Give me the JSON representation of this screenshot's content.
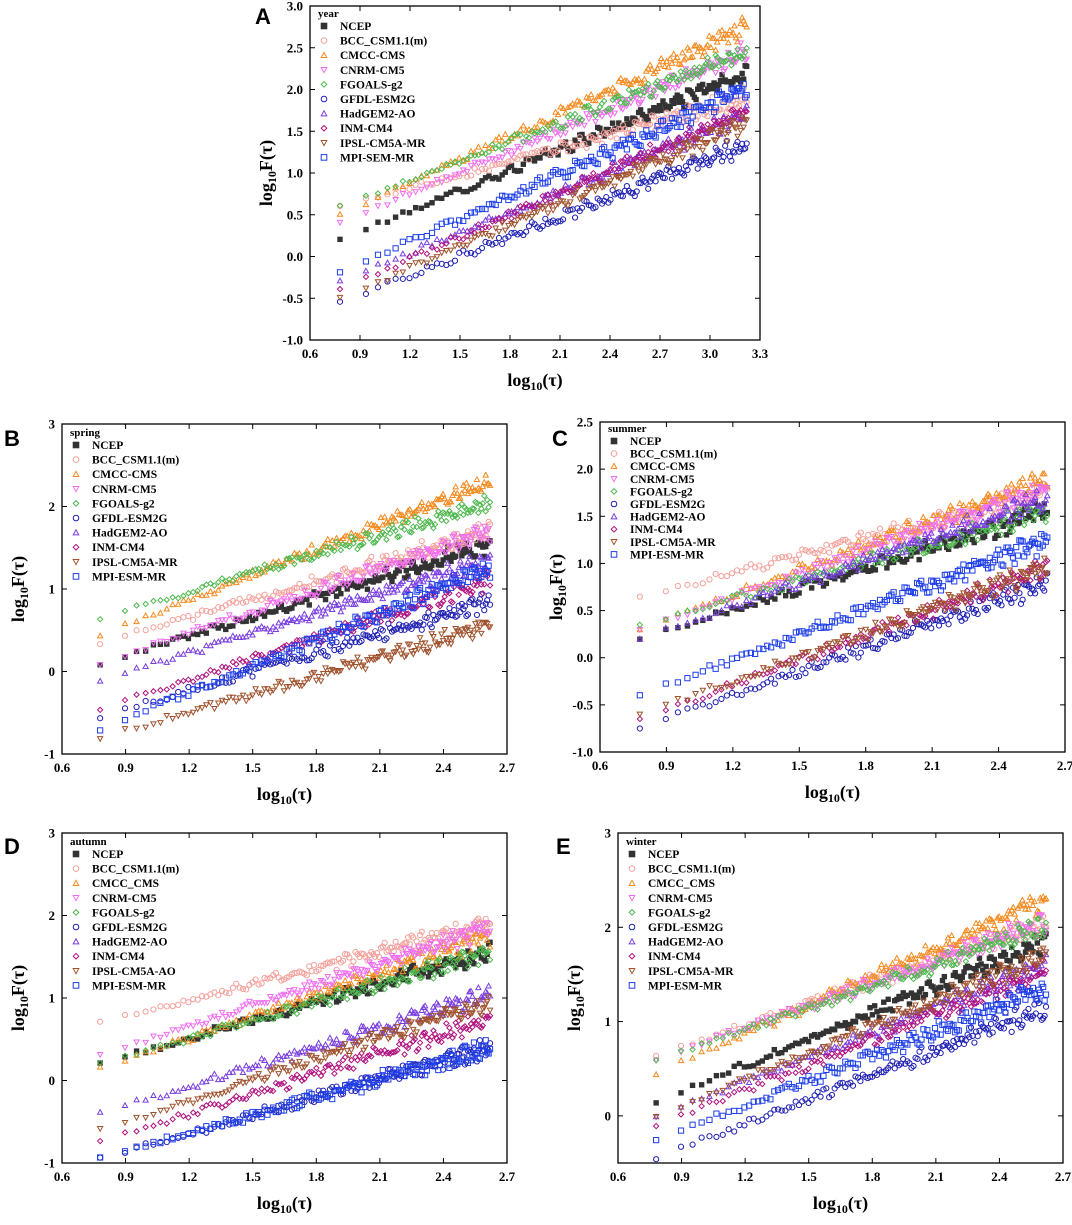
{
  "figure": {
    "x_axis_label": "log10(τ)",
    "y_axis_label": "log10F(τ)"
  },
  "colors": {
    "NCEP": "#333333",
    "BCC": "#f4a09a",
    "CMCC": "#f58a1f",
    "CNRM": "#f06ef0",
    "FGOALS": "#4fb84f",
    "GFDL": "#1f1fb3",
    "HadGEM": "#7a3fe0",
    "INM": "#b0127f",
    "IPSL": "#a0522d",
    "MPI": "#1f3fe8"
  },
  "chart_data": [
    {
      "panel": "A",
      "type": "scatter",
      "legend_title": "year",
      "xlabel": "log10(τ)",
      "ylabel": "log10F(τ)",
      "xlim": [
        0.6,
        3.3
      ],
      "ylim": [
        -1.0,
        3.0
      ],
      "xticks": [
        "0.6",
        "0.9",
        "1.2",
        "1.5",
        "1.8",
        "2.1",
        "2.4",
        "2.7",
        "3.0",
        "3.3"
      ],
      "yticks": [
        "-1.0",
        "-0.5",
        "0.0",
        "0.5",
        "1.0",
        "1.5",
        "2.0",
        "2.5",
        "3.0"
      ],
      "x_range": [
        0.78,
        3.22
      ],
      "series": [
        {
          "name": "NCEP",
          "key": "NCEP",
          "marker": "square",
          "y_start": 0.2,
          "y_end": 2.2
        },
        {
          "name": "BCC_CSM1.1(m)",
          "key": "BCC",
          "marker": "circle",
          "y_start": 0.6,
          "y_end": 1.9
        },
        {
          "name": "CMCC-CMS",
          "key": "CMCC",
          "marker": "triangle-up",
          "y_start": 0.5,
          "y_end": 2.75
        },
        {
          "name": "CNRM-CM5",
          "key": "CNRM",
          "marker": "triangle-down",
          "y_start": 0.4,
          "y_end": 2.45
        },
        {
          "name": "FGOALS-g2",
          "key": "FGOALS",
          "marker": "diamond",
          "y_start": 0.6,
          "y_end": 2.45
        },
        {
          "name": "GFDL-ESM2G",
          "key": "GFDL",
          "marker": "circle",
          "y_start": -0.55,
          "y_end": 1.35
        },
        {
          "name": "HadGEM2-AO",
          "key": "HadGEM",
          "marker": "triangle-up",
          "y_start": -0.3,
          "y_end": 1.7
        },
        {
          "name": "INM-CM4",
          "key": "INM",
          "marker": "diamond",
          "y_start": -0.4,
          "y_end": 1.75
        },
        {
          "name": "IPSL-CM5A-MR",
          "key": "IPSL",
          "marker": "triangle-down",
          "y_start": -0.5,
          "y_end": 1.6
        },
        {
          "name": "MPI-SEM-MR",
          "key": "MPI",
          "marker": "square",
          "y_start": -0.2,
          "y_end": 2.0
        }
      ]
    },
    {
      "panel": "B",
      "type": "scatter",
      "legend_title": "spring",
      "xlabel": "log10(τ)",
      "ylabel": "log10F(τ)",
      "xlim": [
        0.6,
        2.7
      ],
      "ylim": [
        -1,
        3
      ],
      "xticks": [
        "0.6",
        "0.9",
        "1.2",
        "1.5",
        "1.8",
        "2.1",
        "2.4",
        "2.7"
      ],
      "yticks": [
        "-1",
        "0",
        "1",
        "2",
        "3"
      ],
      "x_range": [
        0.78,
        2.62
      ],
      "series": [
        {
          "name": "NCEP",
          "key": "NCEP",
          "marker": "square",
          "y_start": 0.1,
          "y_end": 1.55
        },
        {
          "name": "BCC_CSM1.1(m)",
          "key": "BCC",
          "marker": "circle",
          "y_start": 0.35,
          "y_end": 1.7
        },
        {
          "name": "CMCC-CMS",
          "key": "CMCC",
          "marker": "triangle-up",
          "y_start": 0.45,
          "y_end": 2.3
        },
        {
          "name": "CNRM-CM5",
          "key": "CNRM",
          "marker": "triangle-down",
          "y_start": 0.1,
          "y_end": 1.7
        },
        {
          "name": "FGOALS-g2",
          "key": "FGOALS",
          "marker": "diamond",
          "y_start": 0.65,
          "y_end": 2.05
        },
        {
          "name": "GFDL-ESM2G",
          "key": "GFDL",
          "marker": "circle",
          "y_start": -0.55,
          "y_end": 0.85
        },
        {
          "name": "HadGEM2-AO",
          "key": "HadGEM",
          "marker": "triangle-up",
          "y_start": -0.1,
          "y_end": 1.35
        },
        {
          "name": "INM-CM4",
          "key": "INM",
          "marker": "diamond",
          "y_start": -0.45,
          "y_end": 1.1
        },
        {
          "name": "IPSL-CM5A-MR",
          "key": "IPSL",
          "marker": "triangle-down",
          "y_start": -0.8,
          "y_end": 0.55
        },
        {
          "name": "MPI-ESM-MR",
          "key": "MPI",
          "marker": "square",
          "y_start": -0.7,
          "y_end": 1.25
        }
      ]
    },
    {
      "panel": "C",
      "type": "scatter",
      "legend_title": "summer",
      "xlabel": "log10(τ)",
      "ylabel": "log10F(τ)",
      "xlim": [
        0.6,
        2.7
      ],
      "ylim": [
        -1.0,
        2.5
      ],
      "xticks": [
        "0.6",
        "0.9",
        "1.2",
        "1.5",
        "1.8",
        "2.1",
        "2.4",
        "2.7"
      ],
      "yticks": [
        "-1.0",
        "-0.5",
        "0.0",
        "0.5",
        "1.0",
        "1.5",
        "2.0",
        "2.5"
      ],
      "x_range": [
        0.78,
        2.62
      ],
      "series": [
        {
          "name": "NCEP",
          "key": "NCEP",
          "marker": "square",
          "y_start": 0.2,
          "y_end": 1.55
        },
        {
          "name": "BCC_CSM1.1(m)",
          "key": "BCC",
          "marker": "circle",
          "y_start": 0.65,
          "y_end": 1.75
        },
        {
          "name": "CMCC-CMS",
          "key": "CMCC",
          "marker": "triangle-up",
          "y_start": 0.3,
          "y_end": 1.9
        },
        {
          "name": "CNRM-CM5",
          "key": "CNRM",
          "marker": "triangle-down",
          "y_start": 0.3,
          "y_end": 1.8
        },
        {
          "name": "FGOALS-g2",
          "key": "FGOALS",
          "marker": "diamond",
          "y_start": 0.35,
          "y_end": 1.55
        },
        {
          "name": "GFDL-ESM2G",
          "key": "GFDL",
          "marker": "circle",
          "y_start": -0.75,
          "y_end": 0.8
        },
        {
          "name": "HadGEM2-AO",
          "key": "HadGEM",
          "marker": "triangle-up",
          "y_start": 0.2,
          "y_end": 1.7
        },
        {
          "name": "INM-CM4",
          "key": "INM",
          "marker": "diamond",
          "y_start": -0.65,
          "y_end": 0.95
        },
        {
          "name": "IPSL-CM5A-MR",
          "key": "IPSL",
          "marker": "triangle-down",
          "y_start": -0.6,
          "y_end": 0.95
        },
        {
          "name": "MPI-ESM-MR",
          "key": "MPI",
          "marker": "square",
          "y_start": -0.4,
          "y_end": 1.25
        }
      ]
    },
    {
      "panel": "D",
      "type": "scatter",
      "legend_title": "autumn",
      "xlabel": "log10(τ)",
      "ylabel": "log10F(τ)",
      "xlim": [
        0.6,
        2.7
      ],
      "ylim": [
        -1,
        3
      ],
      "xticks": [
        "0.6",
        "0.9",
        "1.2",
        "1.5",
        "1.8",
        "2.1",
        "2.4",
        "2.7"
      ],
      "yticks": [
        "-1",
        "0",
        "1",
        "2",
        "3"
      ],
      "x_range": [
        0.78,
        2.62
      ],
      "series": [
        {
          "name": "NCEP",
          "key": "NCEP",
          "marker": "square",
          "y_start": 0.2,
          "y_end": 1.55
        },
        {
          "name": "BCC_CSM1.1(m)",
          "key": "BCC",
          "marker": "circle",
          "y_start": 0.7,
          "y_end": 1.9
        },
        {
          "name": "CMCC_CMS",
          "key": "CMCC",
          "marker": "triangle-up",
          "y_start": 0.15,
          "y_end": 1.75
        },
        {
          "name": "CNRM-CM5",
          "key": "CNRM",
          "marker": "triangle-down",
          "y_start": 0.3,
          "y_end": 1.85
        },
        {
          "name": "FGOALS-g2",
          "key": "FGOALS",
          "marker": "diamond",
          "y_start": 0.2,
          "y_end": 1.55
        },
        {
          "name": "GFDL-ESM2G",
          "key": "GFDL",
          "marker": "circle",
          "y_start": -0.95,
          "y_end": 0.4
        },
        {
          "name": "HadGEM2-AO",
          "key": "HadGEM",
          "marker": "triangle-up",
          "y_start": -0.4,
          "y_end": 1.05
        },
        {
          "name": "INM-CM4",
          "key": "INM",
          "marker": "diamond",
          "y_start": -0.75,
          "y_end": 0.75
        },
        {
          "name": "IPSL-CM5A-AO",
          "key": "IPSL",
          "marker": "triangle-down",
          "y_start": -0.6,
          "y_end": 0.95
        },
        {
          "name": "MPI-ESM-MR",
          "key": "MPI",
          "marker": "square",
          "y_start": -0.95,
          "y_end": 0.4
        }
      ]
    },
    {
      "panel": "E",
      "type": "scatter",
      "legend_title": "winter",
      "xlabel": "log10(τ)",
      "ylabel": "log10F(τ)",
      "xlim": [
        0.6,
        2.7
      ],
      "ylim": [
        -0.5,
        3
      ],
      "xticks": [
        "0.6",
        "0.9",
        "1.2",
        "1.5",
        "1.8",
        "2.1",
        "2.4",
        "2.7"
      ],
      "yticks": [
        "0",
        "1",
        "2",
        "3"
      ],
      "x_range": [
        0.78,
        2.62
      ],
      "series": [
        {
          "name": "NCEP",
          "key": "NCEP",
          "marker": "square",
          "y_start": 0.15,
          "y_end": 1.85
        },
        {
          "name": "BCC_CSM1.1(m)",
          "key": "BCC",
          "marker": "circle",
          "y_start": 0.65,
          "y_end": 2.05
        },
        {
          "name": "CMCC_CMS",
          "key": "CMCC",
          "marker": "triangle-up",
          "y_start": 0.45,
          "y_end": 2.3
        },
        {
          "name": "CNRM-CM5",
          "key": "CNRM",
          "marker": "triangle-down",
          "y_start": 0.6,
          "y_end": 2.05
        },
        {
          "name": "FGOALS-g2",
          "key": "FGOALS",
          "marker": "diamond",
          "y_start": 0.6,
          "y_end": 2.0
        },
        {
          "name": "GFDL-ESM2G",
          "key": "GFDL",
          "marker": "circle",
          "y_start": -0.45,
          "y_end": 1.15
        },
        {
          "name": "HadGEM2-AO",
          "key": "HadGEM",
          "marker": "triangle-up",
          "y_start": 0.0,
          "y_end": 1.6
        },
        {
          "name": "INM-CM4",
          "key": "INM",
          "marker": "diamond",
          "y_start": -0.1,
          "y_end": 1.55
        },
        {
          "name": "IPSL-CM5A-MR",
          "key": "IPSL",
          "marker": "triangle-down",
          "y_start": 0.0,
          "y_end": 1.7
        },
        {
          "name": "MPI-ESM-MR",
          "key": "MPI",
          "marker": "square",
          "y_start": -0.25,
          "y_end": 1.35
        }
      ]
    }
  ]
}
